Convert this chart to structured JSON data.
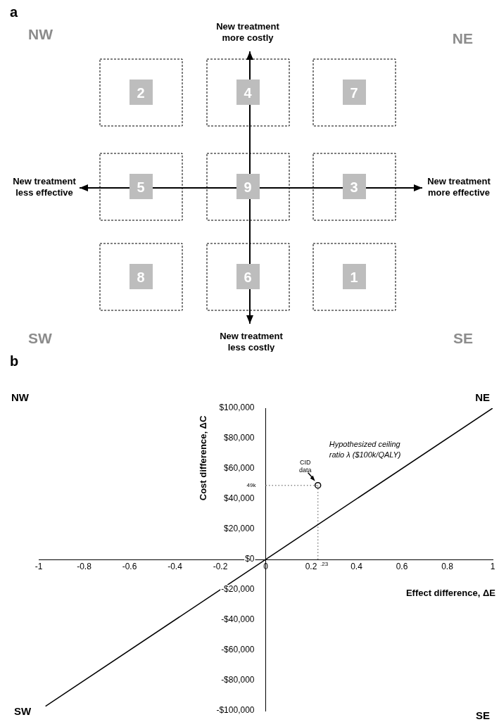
{
  "chart_data": [
    {
      "type": "other",
      "title": "a",
      "annotations": [
        "NW",
        "NE",
        "SW",
        "SE",
        "New treatment\nmore costly",
        "New treatment\nless effective",
        "New treatment\nmore effective",
        "New treatment\nless costly",
        "2",
        "4",
        "7",
        "5",
        "9",
        "3",
        "8",
        "6",
        "1"
      ]
    },
    {
      "type": "line",
      "title": "b",
      "xlabel": "Effect difference, ΔE",
      "ylabel": "Cost difference, ΔC",
      "xlim": [
        -1,
        1
      ],
      "ylim": [
        -100000,
        100000
      ],
      "xticks": [
        -1,
        -0.8,
        -0.6,
        -0.4,
        -0.2,
        0,
        0.2,
        0.4,
        0.6,
        0.8,
        1
      ],
      "yticks": [
        {
          "value": -100000,
          "label": "-$100,000"
        },
        {
          "value": -80000,
          "label": "-$80,000"
        },
        {
          "value": -60000,
          "label": "-$60,000"
        },
        {
          "value": -40000,
          "label": "-$40,000"
        },
        {
          "value": -20000,
          "label": "-$20,000"
        },
        {
          "value": 0,
          "label": "$0"
        },
        {
          "value": 20000,
          "label": "$20,000"
        },
        {
          "value": 40000,
          "label": "$40,000"
        },
        {
          "value": 60000,
          "label": "$60,000"
        },
        {
          "value": 80000,
          "label": "$80,000"
        },
        {
          "value": 100000,
          "label": "$100,000"
        }
      ],
      "grid": false,
      "legend": false,
      "series": [
        {
          "type": "line",
          "color": "#000000",
          "x": [
            -0.97,
            1
          ],
          "values": [
            -97000,
            100000
          ],
          "marker": "none",
          "line_style": "solid"
        },
        {
          "type": "line",
          "color": "#888888",
          "x": [
            0,
            0.23
          ],
          "values": [
            49000,
            49000
          ],
          "marker": "none",
          "line_style": "dotted"
        },
        {
          "type": "line",
          "color": "#888888",
          "x": [
            0.23,
            0.23
          ],
          "values": [
            0,
            49000
          ],
          "marker": "none",
          "line_style": "dotted"
        },
        {
          "type": "scatter",
          "color": "#000000",
          "x": [
            0.23
          ],
          "values": [
            49000
          ],
          "marker": "circle"
        }
      ],
      "annotations": [
        "NW",
        "NE",
        "SW",
        "SE",
        "CID\ndata",
        "49k",
        ".23",
        "Hypothesized ceiling\nratio λ ($100k/QALY)"
      ]
    }
  ]
}
